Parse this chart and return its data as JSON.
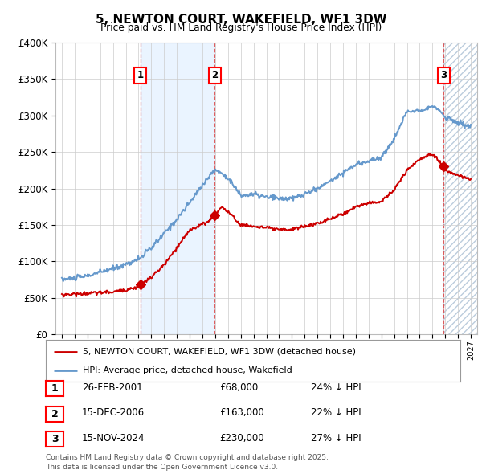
{
  "title": "5, NEWTON COURT, WAKEFIELD, WF1 3DW",
  "subtitle": "Price paid vs. HM Land Registry's House Price Index (HPI)",
  "ylim": [
    0,
    400000
  ],
  "yticks": [
    0,
    50000,
    100000,
    150000,
    200000,
    250000,
    300000,
    350000,
    400000
  ],
  "ytick_labels": [
    "£0",
    "£50K",
    "£100K",
    "£150K",
    "£200K",
    "£250K",
    "£300K",
    "£350K",
    "£400K"
  ],
  "xlim_left": 1994.5,
  "xlim_right": 2027.5,
  "sale_dates_num": [
    2001.15,
    2006.96,
    2024.88
  ],
  "sale_prices": [
    68000,
    163000,
    230000
  ],
  "sale_labels": [
    "1",
    "2",
    "3"
  ],
  "sale_date_strs": [
    "26-FEB-2001",
    "15-DEC-2006",
    "15-NOV-2024"
  ],
  "sale_price_strs": [
    "£68,000",
    "£163,000",
    "£230,000"
  ],
  "sale_hpi_strs": [
    "24% ↓ HPI",
    "22% ↓ HPI",
    "27% ↓ HPI"
  ],
  "legend_line1": "5, NEWTON COURT, WAKEFIELD, WF1 3DW (detached house)",
  "legend_line2": "HPI: Average price, detached house, Wakefield",
  "footer_line1": "Contains HM Land Registry data © Crown copyright and database right 2025.",
  "footer_line2": "This data is licensed under the Open Government Licence v3.0.",
  "red_color": "#cc0000",
  "blue_color": "#6699cc",
  "shade_color": "#ddeeff",
  "bg_color": "#ffffff",
  "grid_color": "#cccccc",
  "shade_region_x0": 2001.15,
  "shade_region_x1": 2006.96,
  "hatch_region_x0": 2024.88,
  "hatch_region_x1": 2027.5
}
